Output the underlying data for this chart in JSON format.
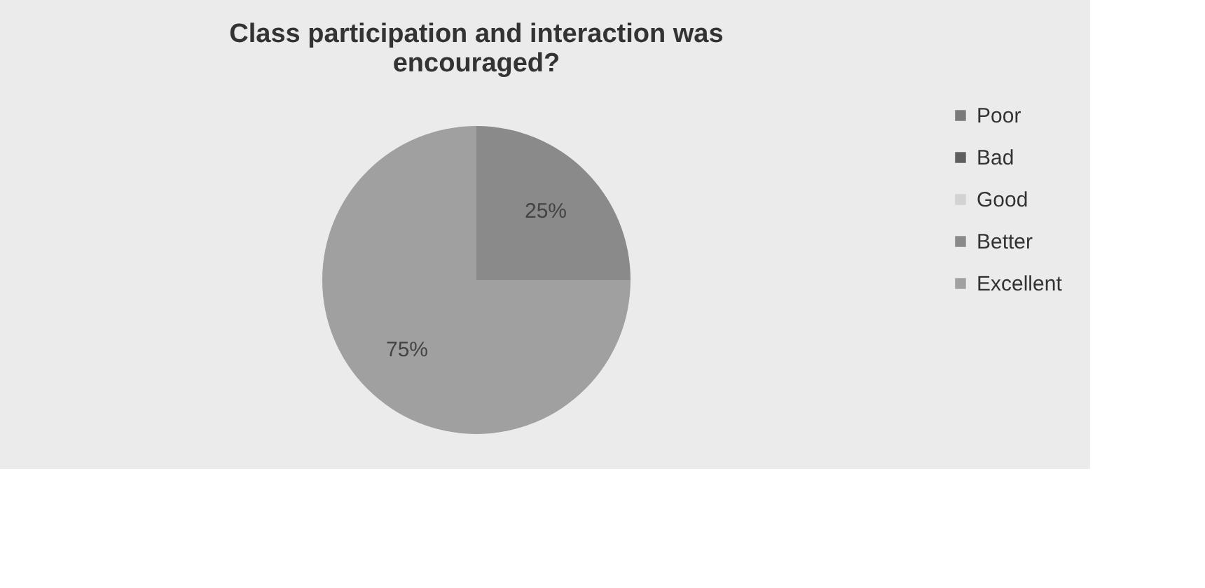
{
  "chart_data": {
    "type": "pie",
    "title": "Class participation and interaction was encouraged?",
    "categories": [
      "Poor",
      "Bad",
      "Good",
      "Better",
      "Excellent"
    ],
    "values": [
      0,
      0,
      0,
      25,
      75
    ],
    "value_labels": [
      null,
      null,
      null,
      "25%",
      "75%"
    ],
    "colors": [
      "#7a7a7a",
      "#5e5e5e",
      "#d2d2d2",
      "#8a8a8a",
      "#a0a0a0"
    ],
    "legend": "right"
  }
}
